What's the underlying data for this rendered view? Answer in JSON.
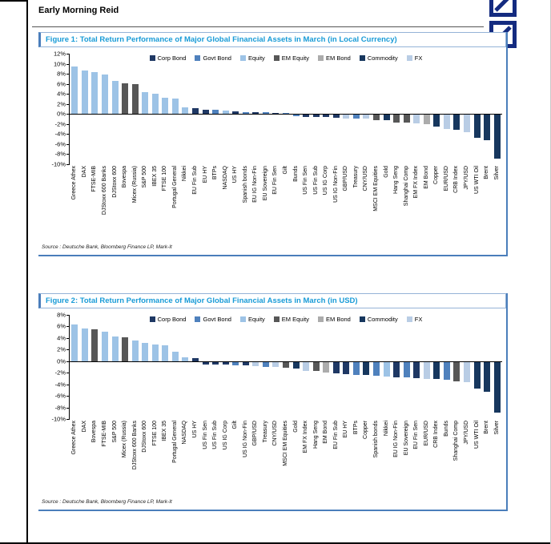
{
  "page": {
    "header_title": "Early Morning Reid"
  },
  "figures": [
    {
      "source": "Source : Deutsche Bank, Bloomberg Finance LP, Mark-It"
    },
    {
      "source": "Source : Deutsche Bank, Bloomberg Finance LP, Mark-It"
    }
  ],
  "colors": {
    "Corp Bond": "#1F3864",
    "Govt Bond": "#4F81BD",
    "Equity": "#9DC3E6",
    "EM Equity": "#575757",
    "EM Bond": "#ACACAC",
    "Commodity": "#17375E",
    "FX": "#B9CDE5",
    "accent_blue": "#4A7EBB",
    "title_blue": "#189BD7",
    "logo_navy": "#142B80"
  },
  "chart_data": [
    {
      "type": "bar",
      "title": "Figure 1: Total Return Performance of Major Global Financial Assets in March (in Local Currency)",
      "xlabel": "",
      "ylabel": "",
      "ylim": [
        -10,
        12
      ],
      "yticks": [
        12,
        10,
        8,
        6,
        4,
        2,
        0,
        -2,
        -4,
        -6,
        -8,
        -10
      ],
      "grid": false,
      "legend_position": "top-center",
      "legend": [
        "Corp Bond",
        "Govt Bond",
        "Equity",
        "EM Equity",
        "EM Bond",
        "Commodity",
        "FX"
      ],
      "points": [
        [
          "Greece Athex",
          "Equity",
          9.5
        ],
        [
          "DAX",
          "Equity",
          8.7
        ],
        [
          "FTSE-MIB",
          "Equity",
          8.4
        ],
        [
          "DJStoxx 600 Banks",
          "Equity",
          7.8
        ],
        [
          "DJStoxx 600",
          "Equity",
          6.6
        ],
        [
          "Bovespa",
          "EM Equity",
          6.1
        ],
        [
          "Micex (Russia)",
          "EM Equity",
          5.9
        ],
        [
          "S&P 500",
          "Equity",
          4.3
        ],
        [
          "IBEX 35",
          "Equity",
          4.1
        ],
        [
          "FTSE 100",
          "Equity",
          3.2
        ],
        [
          "Portugal General",
          "Equity",
          3.0
        ],
        [
          "Nikkei",
          "Equity",
          1.3
        ],
        [
          "EU Fin Sub",
          "Corp Bond",
          1.1
        ],
        [
          "EU HY",
          "Corp Bond",
          0.9
        ],
        [
          "BTPs",
          "Govt Bond",
          0.8
        ],
        [
          "NASDAQ",
          "Equity",
          0.7
        ],
        [
          "US HY",
          "Corp Bond",
          0.5
        ],
        [
          "Spanish bonds",
          "Govt Bond",
          0.4
        ],
        [
          "EU IG Non-Fin",
          "Corp Bond",
          0.3
        ],
        [
          "EU Sovereign",
          "Govt Bond",
          0.3
        ],
        [
          "EU Fin Sen",
          "Corp Bond",
          0.2
        ],
        [
          "Gilt",
          "Govt Bond",
          0.1
        ],
        [
          "Bunds",
          "Govt Bond",
          -0.3
        ],
        [
          "US Fin Sen",
          "Corp Bond",
          -0.4
        ],
        [
          "US Fin Sub",
          "Corp Bond",
          -0.5
        ],
        [
          "US IG Corp",
          "Corp Bond",
          -0.5
        ],
        [
          "US IG Non-Fin",
          "Corp Bond",
          -0.6
        ],
        [
          "GBP/USD",
          "FX",
          -0.7
        ],
        [
          "Treasury",
          "Govt Bond",
          -0.8
        ],
        [
          "CNY/USD",
          "FX",
          -0.8
        ],
        [
          "MSCI EM Equities",
          "EM Equity",
          -1.0
        ],
        [
          "Gold",
          "Commodity",
          -1.1
        ],
        [
          "Hang Seng",
          "EM Equity",
          -1.5
        ],
        [
          "Shanghai Comp",
          "EM Equity",
          -1.6
        ],
        [
          "EM FX Index",
          "FX",
          -1.7
        ],
        [
          "EM Bond",
          "EM Bond",
          -1.9
        ],
        [
          "Copper",
          "Commodity",
          -2.3
        ],
        [
          "EUR/USD",
          "FX",
          -2.9
        ],
        [
          "CRB Index",
          "Commodity",
          -3.0
        ],
        [
          "JPY/USD",
          "FX",
          -3.5
        ],
        [
          "US WTI Oil",
          "Commodity",
          -4.6
        ],
        [
          "Brent",
          "Commodity",
          -5.0
        ],
        [
          "Silver",
          "Commodity",
          -8.8
        ]
      ]
    },
    {
      "type": "bar",
      "title": "Figure 2: Total Return Performance of Major Global Financial Assets in March (in USD)",
      "xlabel": "",
      "ylabel": "",
      "ylim": [
        -10,
        8
      ],
      "yticks": [
        8,
        6,
        4,
        2,
        0,
        -2,
        -4,
        -6,
        -8,
        -10
      ],
      "grid": false,
      "legend_position": "top-center",
      "legend": [
        "Corp Bond",
        "Govt Bond",
        "Equity",
        "EM Equity",
        "EM Bond",
        "Commodity",
        "FX"
      ],
      "points": [
        [
          "Greece Athex",
          "Equity",
          6.3
        ],
        [
          "DAX",
          "Equity",
          5.7
        ],
        [
          "Bovespa",
          "EM Equity",
          5.5
        ],
        [
          "FTSE-MIB",
          "Equity",
          5.1
        ],
        [
          "S&P 500",
          "Equity",
          4.3
        ],
        [
          "Micex (Russia)",
          "EM Equity",
          4.1
        ],
        [
          "DJStoxx 600 Banks",
          "Equity",
          3.6
        ],
        [
          "DJStoxx 600",
          "Equity",
          3.2
        ],
        [
          "FTSE 100",
          "Equity",
          2.9
        ],
        [
          "IBEX 35",
          "Equity",
          2.7
        ],
        [
          "Portugal General",
          "Equity",
          1.7
        ],
        [
          "NASDAQ",
          "Equity",
          0.7
        ],
        [
          "US HY",
          "Corp Bond",
          0.5
        ],
        [
          "US Fin Sen",
          "Corp Bond",
          -0.4
        ],
        [
          "US Fin Sub",
          "Corp Bond",
          -0.5
        ],
        [
          "US IG Corp",
          "Corp Bond",
          -0.5
        ],
        [
          "Gilt",
          "Govt Bond",
          -0.6
        ],
        [
          "US IG Non-Fin",
          "Corp Bond",
          -0.6
        ],
        [
          "GBP/USD",
          "FX",
          -0.7
        ],
        [
          "Treasury",
          "Govt Bond",
          -0.8
        ],
        [
          "CNY/USD",
          "FX",
          -0.8
        ],
        [
          "MSCI EM Equities",
          "EM Equity",
          -1.0
        ],
        [
          "Gold",
          "Commodity",
          -1.1
        ],
        [
          "EM FX Index",
          "FX",
          -1.5
        ],
        [
          "Hang Seng",
          "EM Equity",
          -1.6
        ],
        [
          "EM Bond",
          "EM Bond",
          -1.9
        ],
        [
          "EU Fin Sub",
          "Corp Bond",
          -2.0
        ],
        [
          "EU HY",
          "Corp Bond",
          -2.1
        ],
        [
          "BTPs",
          "Govt Bond",
          -2.2
        ],
        [
          "Copper",
          "Commodity",
          -2.3
        ],
        [
          "Spanish bonds",
          "Govt Bond",
          -2.4
        ],
        [
          "Nikkei",
          "Equity",
          -2.5
        ],
        [
          "EU IG Non-Fin",
          "Corp Bond",
          -2.6
        ],
        [
          "EU Sovereign",
          "Govt Bond",
          -2.7
        ],
        [
          "EU Fin Sen",
          "Corp Bond",
          -2.8
        ],
        [
          "EUR/USD",
          "FX",
          -2.9
        ],
        [
          "CRB Index",
          "Commodity",
          -3.0
        ],
        [
          "Bunds",
          "Govt Bond",
          -3.1
        ],
        [
          "Shanghai Comp",
          "EM Equity",
          -3.3
        ],
        [
          "JPY/USD",
          "FX",
          -3.5
        ],
        [
          "US WTI Oil",
          "Commodity",
          -4.6
        ],
        [
          "Brent",
          "Commodity",
          -5.1
        ],
        [
          "Silver",
          "Commodity",
          -8.7
        ]
      ]
    }
  ]
}
